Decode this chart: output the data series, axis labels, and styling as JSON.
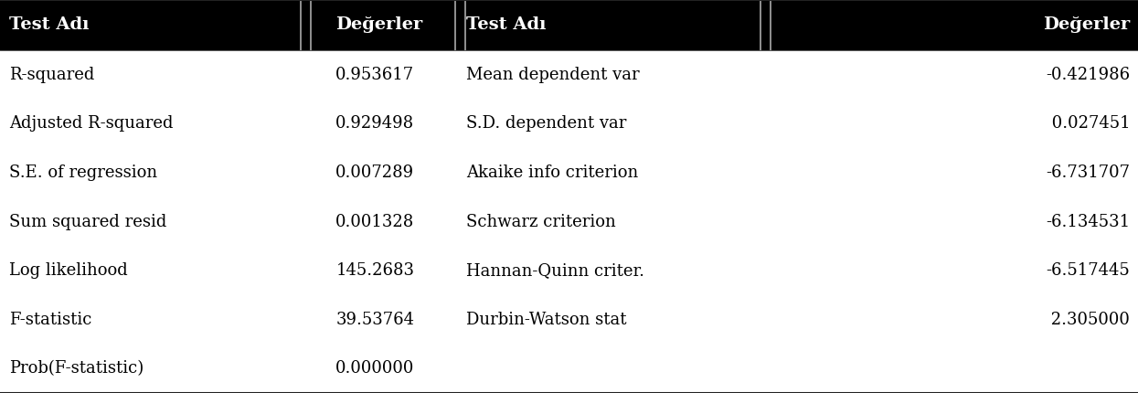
{
  "header": [
    "Test Adı",
    "Değerler",
    "Test Adı",
    "Değerler"
  ],
  "rows": [
    [
      "R-squared",
      "0.953617",
      "Mean dependent var",
      "-0.421986"
    ],
    [
      "Adjusted R-squared",
      "0.929498",
      "S.D. dependent var",
      " 0.027451"
    ],
    [
      "S.E. of regression",
      "0.007289",
      "Akaike info criterion",
      "-6.731707"
    ],
    [
      "Sum squared resid",
      "0.001328",
      "Schwarz criterion",
      "-6.134531"
    ],
    [
      "Log likelihood",
      "145.2683",
      "Hannan-Quinn criter.",
      "-6.517445"
    ],
    [
      "F-statistic",
      "39.53764",
      "Durbin-Watson stat",
      " 2.305000"
    ],
    [
      "Prob(F-statistic)",
      "0.000000",
      "",
      ""
    ]
  ],
  "header_bg": "#000000",
  "header_fg": "#ffffff",
  "body_bg": "#ffffff",
  "body_fg": "#000000",
  "font_size": 13.0,
  "header_font_size": 14.0,
  "fig_width": 12.45,
  "fig_height": 4.3,
  "dpi": 100
}
